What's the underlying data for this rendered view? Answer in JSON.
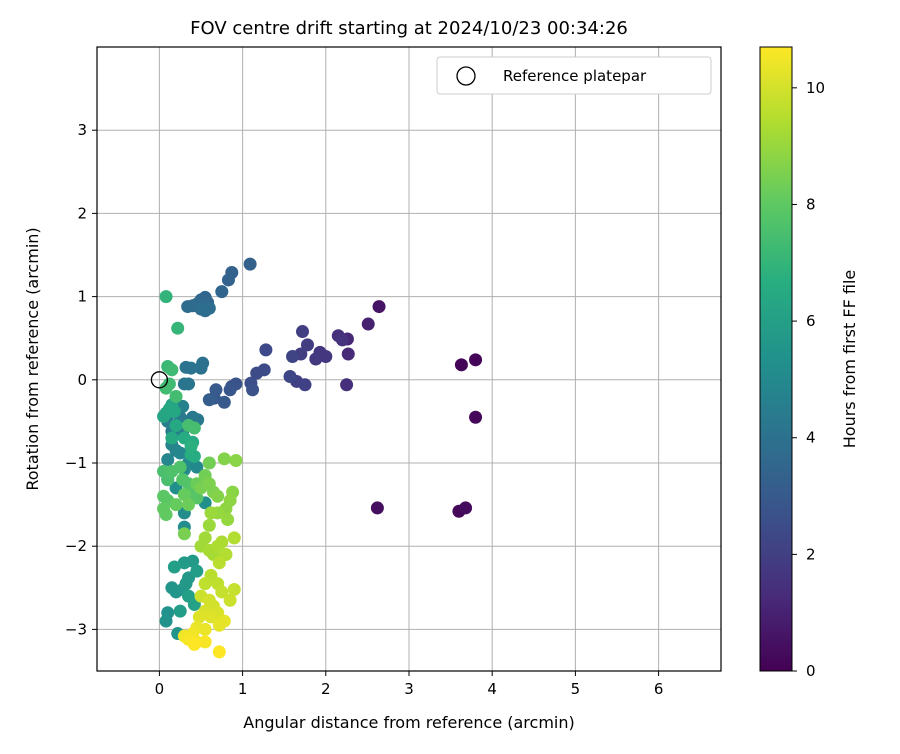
{
  "chart_data": {
    "type": "scatter",
    "title": "FOV centre drift starting at 2024/10/23 00:34:26",
    "xlabel": "Angular distance from reference (arcmin)",
    "ylabel": "Rotation from reference (arcmin)",
    "xlim": [
      -0.75,
      6.75
    ],
    "ylim": [
      -3.5,
      4.0
    ],
    "xticks": [
      "0",
      "1",
      "2",
      "3",
      "4",
      "5",
      "6"
    ],
    "yticks": [
      "−3",
      "−2",
      "−1",
      "0",
      "1",
      "2",
      "3"
    ],
    "grid": true,
    "legend": {
      "position": "top-right",
      "entries": [
        "Reference platepar"
      ]
    },
    "reference_point": {
      "x": 0,
      "y": 0
    },
    "colorbar": {
      "label": "Hours from first FF file",
      "range": [
        0,
        10.7
      ],
      "ticks": [
        "0",
        "2",
        "4",
        "6",
        "8",
        "10"
      ],
      "colormap": "viridis"
    },
    "points": [
      {
        "x": 3.63,
        "y": 0.18,
        "h": 0.1
      },
      {
        "x": 3.8,
        "y": 0.24,
        "h": 0.1
      },
      {
        "x": 3.8,
        "y": -0.45,
        "h": 0.2
      },
      {
        "x": 3.6,
        "y": -1.58,
        "h": 0.2
      },
      {
        "x": 3.68,
        "y": -1.54,
        "h": 0.3
      },
      {
        "x": 2.62,
        "y": -1.54,
        "h": 0.4
      },
      {
        "x": 2.64,
        "y": 0.88,
        "h": 0.6
      },
      {
        "x": 2.51,
        "y": 0.67,
        "h": 1.0
      },
      {
        "x": 2.26,
        "y": 0.49,
        "h": 1.2
      },
      {
        "x": 2.27,
        "y": 0.31,
        "h": 1.3
      },
      {
        "x": 2.25,
        "y": -0.06,
        "h": 1.5
      },
      {
        "x": 2.15,
        "y": 0.53,
        "h": 1.5
      },
      {
        "x": 2.2,
        "y": 0.48,
        "h": 1.6
      },
      {
        "x": 2.0,
        "y": 0.28,
        "h": 1.7
      },
      {
        "x": 1.93,
        "y": 0.33,
        "h": 1.7
      },
      {
        "x": 1.88,
        "y": 0.25,
        "h": 1.8
      },
      {
        "x": 1.78,
        "y": 0.42,
        "h": 1.9
      },
      {
        "x": 1.72,
        "y": 0.58,
        "h": 2.0
      },
      {
        "x": 1.7,
        "y": 0.31,
        "h": 2.0
      },
      {
        "x": 1.65,
        "y": -0.02,
        "h": 2.1
      },
      {
        "x": 1.75,
        "y": -0.06,
        "h": 2.1
      },
      {
        "x": 1.6,
        "y": 0.28,
        "h": 2.2
      },
      {
        "x": 1.57,
        "y": 0.04,
        "h": 2.3
      },
      {
        "x": 1.28,
        "y": 0.36,
        "h": 2.4
      },
      {
        "x": 1.26,
        "y": 0.12,
        "h": 2.5
      },
      {
        "x": 1.17,
        "y": 0.08,
        "h": 2.5
      },
      {
        "x": 1.1,
        "y": -0.04,
        "h": 2.6
      },
      {
        "x": 1.12,
        "y": -0.12,
        "h": 2.7
      },
      {
        "x": 0.92,
        "y": -0.05,
        "h": 2.8
      },
      {
        "x": 0.87,
        "y": -0.08,
        "h": 2.8
      },
      {
        "x": 0.85,
        "y": -0.12,
        "h": 2.9
      },
      {
        "x": 0.78,
        "y": -0.27,
        "h": 3.0
      },
      {
        "x": 0.66,
        "y": -0.22,
        "h": 3.0
      },
      {
        "x": 0.68,
        "y": -0.12,
        "h": 3.1
      },
      {
        "x": 0.6,
        "y": -0.24,
        "h": 3.2
      },
      {
        "x": 1.09,
        "y": 1.39,
        "h": 3.3
      },
      {
        "x": 0.87,
        "y": 1.29,
        "h": 3.4
      },
      {
        "x": 0.83,
        "y": 1.2,
        "h": 3.4
      },
      {
        "x": 0.75,
        "y": 1.06,
        "h": 3.5
      },
      {
        "x": 0.55,
        "y": 0.99,
        "h": 3.5
      },
      {
        "x": 0.58,
        "y": 0.93,
        "h": 3.6
      },
      {
        "x": 0.5,
        "y": 0.96,
        "h": 3.6
      },
      {
        "x": 0.45,
        "y": 0.91,
        "h": 3.7
      },
      {
        "x": 0.4,
        "y": 0.89,
        "h": 3.7
      },
      {
        "x": 0.34,
        "y": 0.88,
        "h": 3.8
      },
      {
        "x": 0.55,
        "y": 0.83,
        "h": 3.8
      },
      {
        "x": 0.6,
        "y": 0.86,
        "h": 3.9
      },
      {
        "x": 0.5,
        "y": 0.85,
        "h": 3.9
      },
      {
        "x": 0.52,
        "y": 0.2,
        "h": 4.0
      },
      {
        "x": 0.5,
        "y": 0.14,
        "h": 4.0
      },
      {
        "x": 0.32,
        "y": 0.15,
        "h": 4.1
      },
      {
        "x": 0.38,
        "y": 0.14,
        "h": 4.1
      },
      {
        "x": 0.3,
        "y": -0.05,
        "h": 4.2
      },
      {
        "x": 0.35,
        "y": -0.05,
        "h": 4.2
      },
      {
        "x": 0.4,
        "y": -0.45,
        "h": 4.3
      },
      {
        "x": 0.46,
        "y": -0.48,
        "h": 4.3
      },
      {
        "x": 0.25,
        "y": -0.45,
        "h": 4.4
      },
      {
        "x": 0.2,
        "y": -0.6,
        "h": 4.4
      },
      {
        "x": 0.15,
        "y": -0.62,
        "h": 4.5
      },
      {
        "x": 0.28,
        "y": -0.62,
        "h": 4.5
      },
      {
        "x": 0.1,
        "y": -0.5,
        "h": 4.6
      },
      {
        "x": 0.28,
        "y": -0.32,
        "h": 4.7
      },
      {
        "x": 0.15,
        "y": -0.78,
        "h": 4.8
      },
      {
        "x": 0.2,
        "y": -0.85,
        "h": 4.8
      },
      {
        "x": 0.25,
        "y": -0.88,
        "h": 4.9
      },
      {
        "x": 0.1,
        "y": -0.96,
        "h": 4.9
      },
      {
        "x": 0.35,
        "y": -1.0,
        "h": 5.0
      },
      {
        "x": 0.45,
        "y": -1.05,
        "h": 5.0
      },
      {
        "x": 0.3,
        "y": -1.08,
        "h": 5.1
      },
      {
        "x": 0.1,
        "y": -1.2,
        "h": 5.1
      },
      {
        "x": 0.3,
        "y": -1.6,
        "h": 5.2
      },
      {
        "x": 0.3,
        "y": -1.77,
        "h": 5.2
      },
      {
        "x": 0.55,
        "y": -1.48,
        "h": 5.3
      },
      {
        "x": 0.2,
        "y": -1.3,
        "h": 5.3
      },
      {
        "x": 0.1,
        "y": -2.8,
        "h": 5.4
      },
      {
        "x": 0.08,
        "y": -2.9,
        "h": 5.4
      },
      {
        "x": 0.22,
        "y": -3.05,
        "h": 5.5
      },
      {
        "x": 0.15,
        "y": -2.5,
        "h": 5.5
      },
      {
        "x": 0.2,
        "y": -2.55,
        "h": 5.6
      },
      {
        "x": 0.28,
        "y": -2.52,
        "h": 5.6
      },
      {
        "x": 0.32,
        "y": -2.45,
        "h": 5.7
      },
      {
        "x": 0.35,
        "y": -2.38,
        "h": 5.7
      },
      {
        "x": 0.3,
        "y": -2.2,
        "h": 5.8
      },
      {
        "x": 0.4,
        "y": -2.18,
        "h": 5.8
      },
      {
        "x": 0.45,
        "y": -2.3,
        "h": 5.9
      },
      {
        "x": 0.25,
        "y": -2.78,
        "h": 5.9
      },
      {
        "x": 0.18,
        "y": -2.25,
        "h": 6.0
      },
      {
        "x": 0.35,
        "y": -2.6,
        "h": 6.0
      },
      {
        "x": 0.42,
        "y": -2.7,
        "h": 6.1
      },
      {
        "x": 0.15,
        "y": -0.3,
        "h": 6.2
      },
      {
        "x": 0.05,
        "y": -0.44,
        "h": 6.3
      },
      {
        "x": 0.08,
        "y": -0.4,
        "h": 6.3
      },
      {
        "x": 0.12,
        "y": -0.35,
        "h": 6.4
      },
      {
        "x": 0.18,
        "y": -0.38,
        "h": 6.4
      },
      {
        "x": 0.2,
        "y": -0.55,
        "h": 6.5
      },
      {
        "x": 0.15,
        "y": -0.7,
        "h": 6.5
      },
      {
        "x": 0.3,
        "y": -0.7,
        "h": 6.6
      },
      {
        "x": 0.4,
        "y": -0.75,
        "h": 6.6
      },
      {
        "x": 0.38,
        "y": -0.9,
        "h": 6.7
      },
      {
        "x": 0.42,
        "y": -0.92,
        "h": 6.7
      },
      {
        "x": 0.38,
        "y": -0.8,
        "h": 6.8
      },
      {
        "x": 0.08,
        "y": 1.0,
        "h": 7.0
      },
      {
        "x": 0.22,
        "y": 0.62,
        "h": 7.1
      },
      {
        "x": 0.1,
        "y": 0.16,
        "h": 7.2
      },
      {
        "x": 0.15,
        "y": 0.12,
        "h": 7.3
      },
      {
        "x": 0.12,
        "y": -0.05,
        "h": 7.3
      },
      {
        "x": 0.08,
        "y": -0.1,
        "h": 7.4
      },
      {
        "x": 0.2,
        "y": -0.2,
        "h": 7.4
      },
      {
        "x": 0.35,
        "y": -0.55,
        "h": 7.5
      },
      {
        "x": 0.42,
        "y": -0.58,
        "h": 7.5
      },
      {
        "x": 0.05,
        "y": -1.1,
        "h": 7.6
      },
      {
        "x": 0.1,
        "y": -1.2,
        "h": 7.6
      },
      {
        "x": 0.15,
        "y": -1.1,
        "h": 7.7
      },
      {
        "x": 0.25,
        "y": -1.05,
        "h": 7.7
      },
      {
        "x": 0.28,
        "y": -1.2,
        "h": 7.8
      },
      {
        "x": 0.35,
        "y": -1.25,
        "h": 7.8
      },
      {
        "x": 0.4,
        "y": -1.35,
        "h": 7.9
      },
      {
        "x": 0.45,
        "y": -1.42,
        "h": 7.9
      },
      {
        "x": 0.05,
        "y": -1.4,
        "h": 8.0
      },
      {
        "x": 0.1,
        "y": -1.45,
        "h": 8.0
      },
      {
        "x": 0.05,
        "y": -1.55,
        "h": 8.1
      },
      {
        "x": 0.08,
        "y": -1.62,
        "h": 8.1
      },
      {
        "x": 0.2,
        "y": -1.5,
        "h": 8.2
      },
      {
        "x": 0.3,
        "y": -1.38,
        "h": 8.2
      },
      {
        "x": 0.35,
        "y": -1.5,
        "h": 8.3
      },
      {
        "x": 0.45,
        "y": -1.25,
        "h": 8.3
      },
      {
        "x": 0.55,
        "y": -1.15,
        "h": 8.4
      },
      {
        "x": 0.6,
        "y": -1.0,
        "h": 8.4
      },
      {
        "x": 0.3,
        "y": -1.85,
        "h": 8.5
      },
      {
        "x": 0.5,
        "y": -1.3,
        "h": 8.5
      },
      {
        "x": 0.6,
        "y": -1.25,
        "h": 8.6
      },
      {
        "x": 0.65,
        "y": -1.35,
        "h": 8.6
      },
      {
        "x": 0.7,
        "y": -1.4,
        "h": 8.7
      },
      {
        "x": 0.78,
        "y": -0.95,
        "h": 8.7
      },
      {
        "x": 0.92,
        "y": -0.97,
        "h": 8.8
      },
      {
        "x": 0.88,
        "y": -1.35,
        "h": 8.8
      },
      {
        "x": 0.85,
        "y": -1.45,
        "h": 8.9
      },
      {
        "x": 0.8,
        "y": -1.55,
        "h": 8.9
      },
      {
        "x": 0.82,
        "y": -1.68,
        "h": 9.0
      },
      {
        "x": 0.7,
        "y": -1.6,
        "h": 9.0
      },
      {
        "x": 0.62,
        "y": -1.6,
        "h": 9.1
      },
      {
        "x": 0.6,
        "y": -1.75,
        "h": 9.1
      },
      {
        "x": 0.55,
        "y": -1.9,
        "h": 9.2
      },
      {
        "x": 0.5,
        "y": -2.0,
        "h": 9.2
      },
      {
        "x": 0.6,
        "y": -2.05,
        "h": 9.3
      },
      {
        "x": 0.65,
        "y": -2.1,
        "h": 9.3
      },
      {
        "x": 0.7,
        "y": -2.0,
        "h": 9.4
      },
      {
        "x": 0.75,
        "y": -1.95,
        "h": 9.4
      },
      {
        "x": 0.9,
        "y": -1.9,
        "h": 9.5
      },
      {
        "x": 0.8,
        "y": -2.1,
        "h": 9.5
      },
      {
        "x": 0.72,
        "y": -2.2,
        "h": 9.6
      },
      {
        "x": 0.62,
        "y": -2.35,
        "h": 9.6
      },
      {
        "x": 0.55,
        "y": -2.45,
        "h": 9.7
      },
      {
        "x": 0.7,
        "y": -2.45,
        "h": 9.7
      },
      {
        "x": 0.75,
        "y": -2.55,
        "h": 9.8
      },
      {
        "x": 0.9,
        "y": -2.52,
        "h": 9.8
      },
      {
        "x": 0.85,
        "y": -2.65,
        "h": 9.9
      },
      {
        "x": 0.5,
        "y": -2.6,
        "h": 9.9
      },
      {
        "x": 0.6,
        "y": -2.65,
        "h": 10.0
      },
      {
        "x": 0.65,
        "y": -2.72,
        "h": 10.0
      },
      {
        "x": 0.7,
        "y": -2.8,
        "h": 10.1
      },
      {
        "x": 0.55,
        "y": -2.78,
        "h": 10.1
      },
      {
        "x": 0.48,
        "y": -2.85,
        "h": 10.2
      },
      {
        "x": 0.62,
        "y": -2.85,
        "h": 10.2
      },
      {
        "x": 0.78,
        "y": -2.9,
        "h": 10.3
      },
      {
        "x": 0.72,
        "y": -2.95,
        "h": 10.3
      },
      {
        "x": 0.45,
        "y": -2.98,
        "h": 10.4
      },
      {
        "x": 0.55,
        "y": -3.0,
        "h": 10.4
      },
      {
        "x": 0.4,
        "y": -3.05,
        "h": 10.5
      },
      {
        "x": 0.3,
        "y": -3.08,
        "h": 10.5
      },
      {
        "x": 0.35,
        "y": -3.12,
        "h": 10.6
      },
      {
        "x": 0.45,
        "y": -3.15,
        "h": 10.6
      },
      {
        "x": 0.55,
        "y": -3.15,
        "h": 10.6
      },
      {
        "x": 0.72,
        "y": -3.27,
        "h": 10.7
      },
      {
        "x": 0.42,
        "y": -3.18,
        "h": 10.7
      }
    ]
  }
}
